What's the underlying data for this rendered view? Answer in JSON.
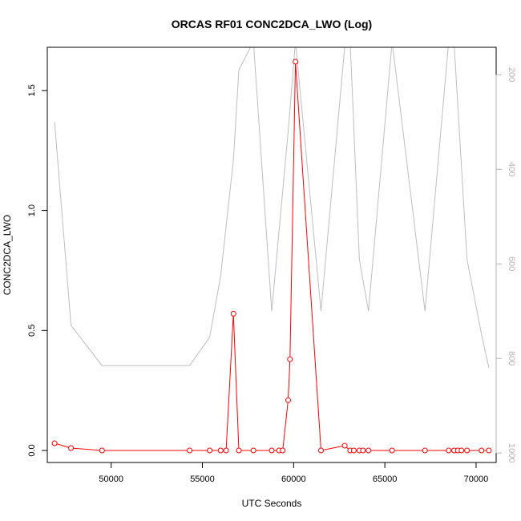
{
  "chart_data": {
    "type": "line",
    "title": "ORCAS RF01 CONC2DCA_LWO (Log)",
    "xlabel": "UTC Seconds",
    "ylabel": "CONC2DCA_LWO",
    "xlim": [
      46500,
      71100
    ],
    "ylim": [
      -0.05,
      1.68
    ],
    "x_ticks": [
      50000,
      55000,
      60000,
      65000,
      70000
    ],
    "x_tick_labels": [
      "50000",
      "55000",
      "60000",
      "65000",
      "70000"
    ],
    "y_ticks": [
      0.0,
      0.5,
      1.0,
      1.5
    ],
    "y_tick_labels": [
      "0.0",
      "0.5",
      "1.0",
      "1.5"
    ],
    "y2_lim": [
      1020,
      142
    ],
    "y2_reversed": true,
    "y2_ticks": [
      200,
      400,
      600,
      800,
      1000
    ],
    "y2_tick_labels": [
      "200",
      "400",
      "600",
      "800",
      "1000"
    ],
    "grid": false,
    "colors": {
      "primary": "#ff0000",
      "secondary": "#bebebe"
    },
    "series": [
      {
        "axis": "left",
        "color": "#ff0000",
        "marker": "open-circle",
        "x": [
          46900,
          47800,
          49500,
          54300,
          55400,
          56000,
          56300,
          56700,
          57000,
          57800,
          58800,
          59200,
          59400,
          59700,
          59800,
          60100,
          61500,
          62800,
          63100,
          63300,
          63600,
          63800,
          64100,
          65400,
          67200,
          68500,
          68800,
          69000,
          69200,
          69500,
          70300,
          70700
        ],
        "y": [
          0.03,
          0.01,
          0.0,
          0.0,
          0.0,
          0.0,
          0.0,
          0.57,
          0.0,
          0.0,
          0.0,
          0.0,
          0.0,
          0.21,
          0.38,
          1.62,
          0.0,
          0.02,
          0.0,
          0.0,
          0.0,
          0.0,
          0.0,
          0.0,
          0.0,
          0.0,
          0.0,
          0.0,
          0.0,
          0.0,
          0.0,
          0.0
        ]
      },
      {
        "axis": "right",
        "color": "#bebebe",
        "marker": "none",
        "x": [
          46900,
          47800,
          49500,
          54300,
          55400,
          56000,
          56700,
          57000,
          57800,
          58800,
          59700,
          60100,
          61500,
          62800,
          63100,
          63600,
          64100,
          65400,
          67200,
          68500,
          68800,
          69500,
          70300,
          70700
        ],
        "y": [
          300,
          730,
          815,
          815,
          755,
          625,
          380,
          190,
          130,
          700,
          320,
          130,
          700,
          140,
          130,
          590,
          700,
          130,
          700,
          130,
          135,
          590,
          750,
          820
        ]
      }
    ]
  }
}
